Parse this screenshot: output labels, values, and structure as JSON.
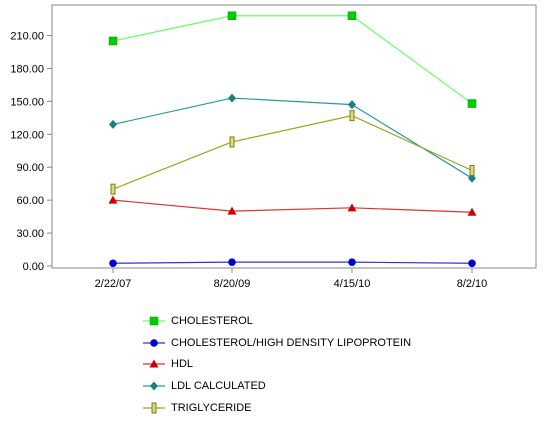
{
  "chart_data": {
    "type": "line",
    "title": "",
    "xlabel": "",
    "ylabel": "",
    "categories": [
      "2/22/07",
      "8/20/09",
      "4/15/10",
      "8/2/10"
    ],
    "ylim": [
      0,
      225
    ],
    "yticks": [
      "0.00",
      "30.00",
      "60.00",
      "90.00",
      "120.00",
      "150.00",
      "180.00",
      "210.00"
    ],
    "ytick_values": [
      0,
      30,
      60,
      90,
      120,
      150,
      180,
      210
    ],
    "grid": false,
    "legend_position": "bottom",
    "series": [
      {
        "name": "CHOLESTEROL",
        "values": [
          205,
          228,
          228,
          148
        ],
        "color": "#00cc00",
        "line": "#66ff66",
        "marker": "square"
      },
      {
        "name": "CHOLESTEROL/HIGH DENSITY LIPOPROTEIN",
        "values": [
          2.5,
          3.5,
          3.5,
          2.5
        ],
        "color": "#0000cc",
        "line": "#3333cc",
        "marker": "circle"
      },
      {
        "name": "HDL",
        "values": [
          60,
          50,
          53,
          49
        ],
        "color": "#cc0000",
        "line": "#dd3333",
        "marker": "triangle"
      },
      {
        "name": "LDL CALCULATED",
        "values": [
          129,
          153,
          147,
          80
        ],
        "color": "#1a7f7f",
        "line": "#2a9a9a",
        "marker": "diamond"
      },
      {
        "name": "TRIGLYCERIDE",
        "values": [
          70,
          113,
          137,
          87
        ],
        "color": "#808000",
        "line": "#a0a020",
        "marker": "bar"
      }
    ]
  }
}
